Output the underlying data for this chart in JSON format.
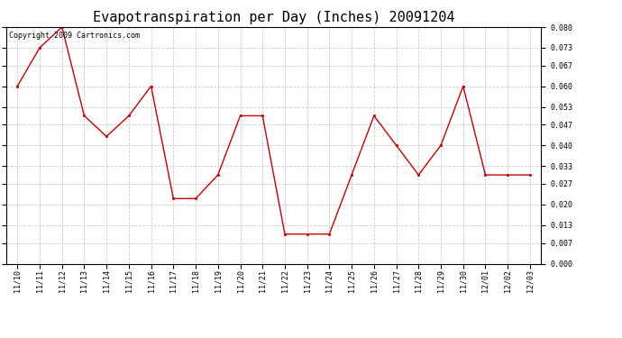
{
  "title": "Evapotranspiration per Day (Inches) 20091204",
  "copyright_text": "Copyright 2009 Cartronics.com",
  "x_labels": [
    "11/10",
    "11/11",
    "11/12",
    "11/13",
    "11/14",
    "11/15",
    "11/16",
    "11/17",
    "11/18",
    "11/19",
    "11/20",
    "11/21",
    "11/22",
    "11/23",
    "11/24",
    "11/25",
    "11/26",
    "11/27",
    "11/28",
    "11/29",
    "11/30",
    "12/01",
    "12/02",
    "12/03"
  ],
  "y_values": [
    0.06,
    0.073,
    0.08,
    0.05,
    0.043,
    0.05,
    0.06,
    0.022,
    0.022,
    0.03,
    0.05,
    0.05,
    0.01,
    0.01,
    0.01,
    0.03,
    0.05,
    0.04,
    0.03,
    0.04,
    0.06,
    0.03,
    0.03,
    0.03
  ],
  "line_color": "#cc0000",
  "marker": "s",
  "marker_color": "#cc0000",
  "marker_size": 2,
  "background_color": "#ffffff",
  "plot_bg_color": "#ffffff",
  "grid_color": "#cccccc",
  "ylim": [
    0.0,
    0.08
  ],
  "yticks": [
    0.0,
    0.007,
    0.013,
    0.02,
    0.027,
    0.033,
    0.04,
    0.047,
    0.053,
    0.06,
    0.067,
    0.073,
    0.08
  ],
  "title_fontsize": 11,
  "tick_fontsize": 6,
  "copyright_fontsize": 6
}
